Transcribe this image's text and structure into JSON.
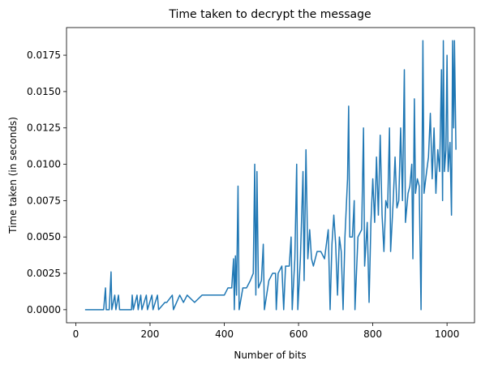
{
  "chart_data": {
    "type": "line",
    "title": "Time taken to decrypt the message",
    "xlabel": "Number of bits",
    "ylabel": "Time taken (in seconds)",
    "color": "#1f77b4",
    "xlim": [
      -25,
      1074
    ],
    "ylim": [
      -0.0009,
      0.0194
    ],
    "xticks": [
      0,
      200,
      400,
      600,
      800,
      1000
    ],
    "yticks": [
      {
        "value": 0,
        "label": "0.0000"
      },
      {
        "value": 0.0025,
        "label": "0.0025"
      },
      {
        "value": 0.005,
        "label": "0.0050"
      },
      {
        "value": 0.0075,
        "label": "0.0075"
      },
      {
        "value": 0.01,
        "label": "0.0100"
      },
      {
        "value": 0.0125,
        "label": "0.0125"
      },
      {
        "value": 0.015,
        "label": "0.0150"
      },
      {
        "value": 0.0175,
        "label": "0.0175"
      }
    ],
    "x": [
      25,
      75,
      80,
      82,
      90,
      95,
      97,
      105,
      108,
      115,
      118,
      150,
      152,
      155,
      165,
      168,
      175,
      178,
      190,
      193,
      205,
      208,
      220,
      223,
      240,
      245,
      260,
      263,
      280,
      290,
      300,
      320,
      340,
      360,
      400,
      410,
      420,
      425,
      427,
      430,
      433,
      437,
      440,
      450,
      460,
      470,
      478,
      482,
      485,
      488,
      492,
      500,
      505,
      508,
      520,
      530,
      538,
      540,
      545,
      555,
      560,
      565,
      575,
      580,
      583,
      590,
      595,
      598,
      605,
      612,
      615,
      620,
      625,
      630,
      635,
      640,
      650,
      660,
      670,
      680,
      685,
      690,
      695,
      700,
      705,
      710,
      715,
      720,
      725,
      732,
      735,
      738,
      745,
      750,
      752,
      760,
      770,
      775,
      778,
      785,
      790,
      795,
      800,
      805,
      810,
      815,
      820,
      825,
      830,
      835,
      840,
      845,
      848,
      855,
      860,
      865,
      870,
      875,
      880,
      885,
      888,
      895,
      900,
      905,
      908,
      912,
      915,
      920,
      925,
      930,
      935,
      938,
      945,
      950,
      955,
      960,
      965,
      970,
      975,
      980,
      985,
      988,
      990,
      993,
      997,
      1000,
      1003,
      1008,
      1012,
      1015,
      1018,
      1020,
      1024
    ],
    "values": [
      0,
      0,
      0.0015,
      0,
      0,
      0.0026,
      0,
      0.001,
      0,
      0.001,
      0,
      0,
      0.001,
      0,
      0.001,
      0,
      0.001,
      0,
      0.001,
      0,
      0.001,
      0,
      0.001,
      0,
      0.0005,
      0.0005,
      0.001,
      0,
      0.001,
      0.0005,
      0.001,
      0.0005,
      0.001,
      0.001,
      0.001,
      0.0015,
      0.0015,
      0.0035,
      0,
      0.0037,
      0.001,
      0.0085,
      0,
      0.0015,
      0.0015,
      0.002,
      0.0025,
      0.01,
      0.001,
      0.0095,
      0.0015,
      0.002,
      0.0045,
      0,
      0.002,
      0.0025,
      0.0025,
      0,
      0.0025,
      0.003,
      0,
      0.003,
      0.003,
      0.005,
      0,
      0.0035,
      0.01,
      0,
      0.0035,
      0.0095,
      0.002,
      0.011,
      0.0035,
      0.0055,
      0.0035,
      0.003,
      0.004,
      0.004,
      0.0035,
      0.0055,
      0,
      0.0045,
      0.0065,
      0.0045,
      0.001,
      0.005,
      0.004,
      0,
      0.005,
      0.009,
      0.014,
      0.005,
      0.005,
      0.0075,
      0,
      0.005,
      0.0055,
      0.0125,
      0.003,
      0.006,
      0.0005,
      0.006,
      0.009,
      0.006,
      0.0105,
      0.0065,
      0.012,
      0.0065,
      0.004,
      0.0075,
      0.007,
      0.0125,
      0.004,
      0.0075,
      0.0105,
      0.007,
      0.0075,
      0.0125,
      0.0075,
      0.0165,
      0.006,
      0.008,
      0.0085,
      0.01,
      0.0035,
      0.0145,
      0.008,
      0.009,
      0.0085,
      0,
      0.0185,
      0.008,
      0.0095,
      0.0105,
      0.0135,
      0.009,
      0.0125,
      0.008,
      0.011,
      0.0095,
      0.0165,
      0.0075,
      0.0185,
      0.0095,
      0.011,
      0.0175,
      0.0095,
      0.0115,
      0.0065,
      0.0185,
      0.0125,
      0.0185,
      0.011
    ]
  }
}
